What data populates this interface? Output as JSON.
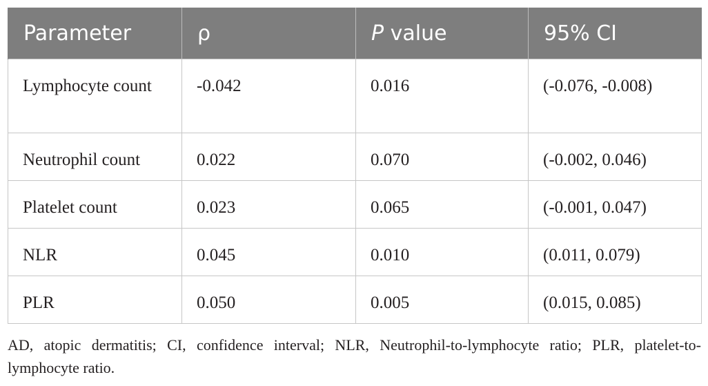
{
  "table": {
    "headers": [
      {
        "plain": "Parameter",
        "italic": "",
        "suffix": ""
      },
      {
        "plain": "ρ",
        "italic": "",
        "suffix": ""
      },
      {
        "plain": "",
        "italic": "P",
        "suffix": " value"
      },
      {
        "plain": "95% CI",
        "italic": "",
        "suffix": ""
      }
    ],
    "rows": [
      [
        "Lymphocyte count",
        "-0.042",
        "0.016",
        "(-0.076, -0.008)"
      ],
      [
        "Neutrophil count",
        "0.022",
        "0.070",
        "(-0.002, 0.046)"
      ],
      [
        "Platelet count",
        "0.023",
        "0.065",
        "(-0.001, 0.047)"
      ],
      [
        "NLR",
        "0.045",
        "0.010",
        "(0.011, 0.079)"
      ],
      [
        "PLR",
        "0.050",
        "0.005",
        "(0.015, 0.085)"
      ]
    ]
  },
  "footnote": "AD, atopic dermatitis; CI, confidence interval; NLR, Neutrophil-to-lymphocyte ratio; PLR, platelet-to-lymphocyte ratio.",
  "colors": {
    "header_bg": "#7e7e7e",
    "header_text": "#ffffff",
    "border": "#c6c6c6",
    "body_text": "#231f20"
  }
}
